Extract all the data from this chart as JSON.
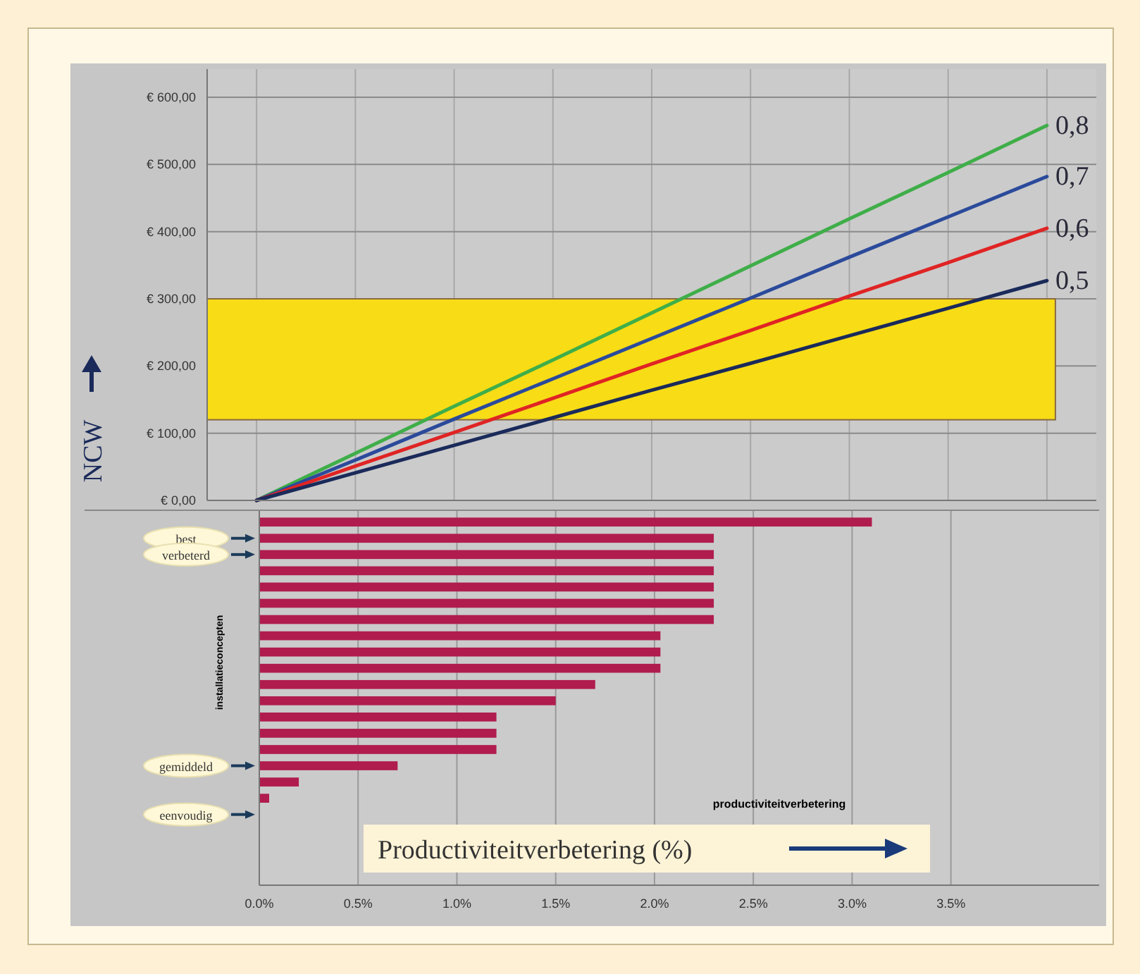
{
  "chart_data": [
    {
      "type": "line",
      "ylabel": "NCW",
      "categories": [
        null,
        null,
        null,
        null,
        null,
        null,
        null,
        null,
        null
      ],
      "ylim": [
        0,
        600
      ],
      "yticks": [
        {
          "value": 0,
          "label": "€ 0,00"
        },
        {
          "value": 100,
          "label": "€ 100,00"
        },
        {
          "value": 200,
          "label": "€ 200,00"
        },
        {
          "value": 300,
          "label": "€ 300,00"
        },
        {
          "value": 400,
          "label": "€ 400,00"
        },
        {
          "value": 500,
          "label": "€ 500,00"
        },
        {
          "value": 600,
          "label": "€ 600,00"
        }
      ],
      "series": [
        {
          "name": "0,8",
          "color": "#3fae49",
          "values": [
            0,
            70,
            140,
            209,
            279,
            349,
            419,
            488,
            558
          ]
        },
        {
          "name": "0,7",
          "color": "#2b4a9b",
          "values": [
            0,
            60,
            121,
            181,
            241,
            301,
            362,
            422,
            482
          ]
        },
        {
          "name": "0,6",
          "color": "#e02424",
          "values": [
            0,
            51,
            101,
            152,
            203,
            253,
            304,
            354,
            405
          ]
        },
        {
          "name": "0,5",
          "color": "#1a2a5a",
          "values": [
            0,
            41,
            82,
            123,
            164,
            204,
            245,
            286,
            327
          ]
        }
      ],
      "bands": [
        {
          "axis": "y",
          "from": 120,
          "to": 300,
          "color": "#f7dc16"
        }
      ],
      "grid": true
    },
    {
      "type": "bar",
      "orientation": "horizontal",
      "ylabel": "installatieconcepten",
      "xlabel": "productiviteitverbetering",
      "annotations": [
        "Productiviteitverbetering (%)"
      ],
      "categories": [
        null,
        "best",
        "verbeterd",
        null,
        null,
        null,
        null,
        null,
        null,
        null,
        null,
        null,
        null,
        null,
        null,
        "gemiddeld",
        null,
        null,
        "eenvoudig"
      ],
      "values": [
        3.1,
        2.3,
        2.3,
        2.3,
        2.3,
        2.3,
        2.3,
        2.03,
        2.03,
        2.03,
        1.7,
        1.5,
        1.2,
        1.2,
        1.2,
        0.7,
        0.2,
        0.05,
        0
      ],
      "color": "#b01c4e",
      "xlim": [
        0,
        4.25
      ],
      "xticks": [
        {
          "value": 0,
          "label": "0.0%"
        },
        {
          "value": 0.5,
          "label": "0.5%"
        },
        {
          "value": 1,
          "label": "1.0%"
        },
        {
          "value": 1.5,
          "label": "1.5%"
        },
        {
          "value": 2,
          "label": "2.0%"
        },
        {
          "value": 2.5,
          "label": "2.5%"
        },
        {
          "value": 3,
          "label": "3.0%"
        },
        {
          "value": 3.5,
          "label": "3.5%"
        }
      ],
      "grid": "x"
    }
  ]
}
